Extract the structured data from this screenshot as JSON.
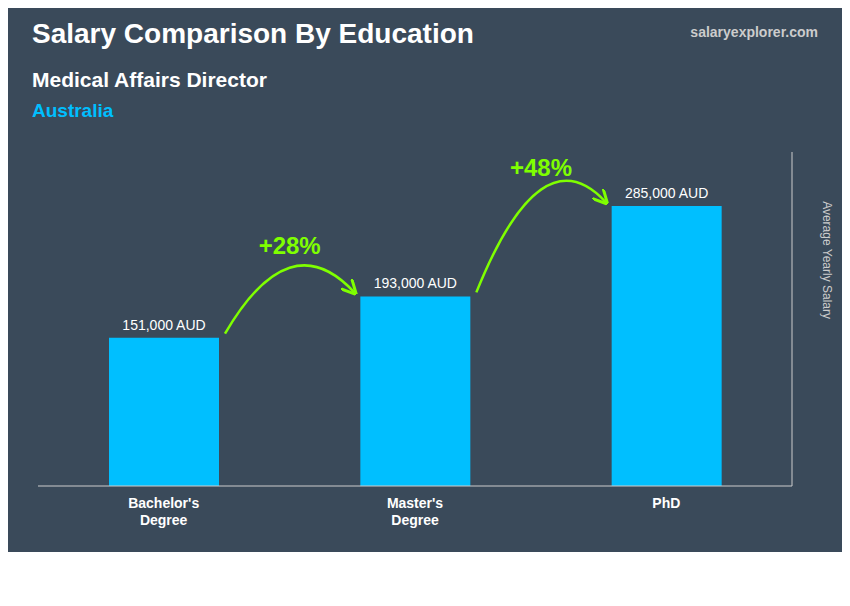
{
  "chart_data": {
    "type": "bar",
    "title": "Salary Comparison By Education",
    "subtitle": [
      "Medical Affairs Director",
      "Australia"
    ],
    "ylabel": "Average Yearly Salary",
    "categories": [
      "Bachelor's\nDegree",
      "Master's\nDegree",
      "PhD"
    ],
    "values": [
      151000,
      193000,
      285000
    ],
    "value_labels": [
      "151,000 AUD",
      "193,000 AUD",
      "285,000 AUD"
    ],
    "data_labels": true,
    "color": "#00BFFF",
    "ylim": [
      0,
      340000
    ],
    "grid": false,
    "tick_labels": "x",
    "annotations": [
      {
        "text": "+28%",
        "color": "#7FFF00",
        "between": [
          0,
          1
        ]
      },
      {
        "text": "+48%",
        "color": "#7FFF00",
        "between": [
          1,
          2
        ]
      },
      {
        "text": "salaryexplorer.com"
      }
    ]
  }
}
